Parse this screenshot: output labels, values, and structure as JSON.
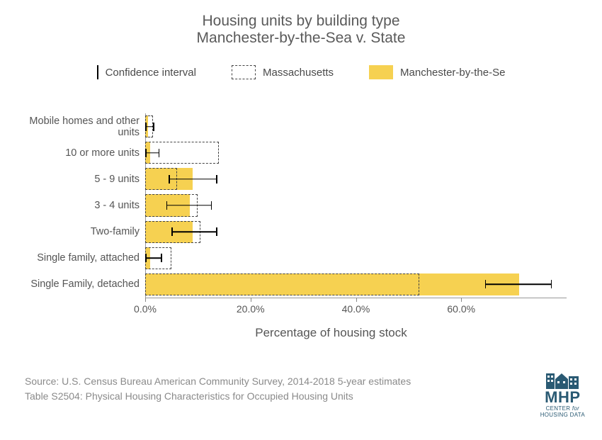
{
  "title": {
    "line1": "Housing units by building type",
    "line2": "Manchester-by-the-Sea  v. State",
    "fontsize": 21,
    "color": "#5a5a5a"
  },
  "legend": {
    "ci_label": "Confidence interval",
    "dashed_label": "Massachusetts",
    "fill_label": "Manchester-by-the-Se",
    "fontsize": 15
  },
  "chart": {
    "type": "bar",
    "orientation": "horizontal",
    "background_color": "#ffffff",
    "fill_color": "#f6d151",
    "dashed_border_color": "#444444",
    "ci_color": "#000000",
    "axis_color": "#999999",
    "label_color": "#555555",
    "xlabel": "Percentage of housing stock",
    "xlabel_fontsize": 17,
    "xlim": [
      0,
      80
    ],
    "xticks": [
      0,
      20,
      40,
      60
    ],
    "xtick_labels": [
      "0.0%",
      "20.0%",
      "40.0%",
      "60.0%"
    ],
    "tick_fontsize": 14,
    "category_fontsize": 14.5,
    "categories": [
      "Mobile homes and other units",
      "10 or more units",
      "5 - 9 units",
      "3 - 4 units",
      "Two-family",
      "Single family, attached",
      "Single Family, detached"
    ],
    "manchester_values": [
      0.5,
      1.0,
      9.0,
      8.5,
      9.0,
      1.0,
      71.0
    ],
    "massachusetts_values": [
      1.5,
      14.0,
      6.0,
      10.0,
      10.5,
      5.0,
      52.0
    ],
    "ci_low": [
      0.0,
      0.0,
      4.5,
      4.0,
      5.0,
      0.0,
      64.5
    ],
    "ci_high": [
      1.5,
      2.5,
      13.5,
      12.5,
      13.5,
      3.0,
      77.0
    ]
  },
  "footer": {
    "line1": "Source: U.S. Census Bureau American Community Survey, 2014-2018 5-year estimates",
    "line2": "Table S2504: Physical Housing Characteristics for Occupied Housing Units",
    "fontsize": 14,
    "color": "#8a8a8a"
  },
  "logo": {
    "text": "MHP",
    "sub1": "CENTER",
    "sub_em": "for",
    "sub2": "HOUSING DATA",
    "color": "#2a5a73"
  }
}
